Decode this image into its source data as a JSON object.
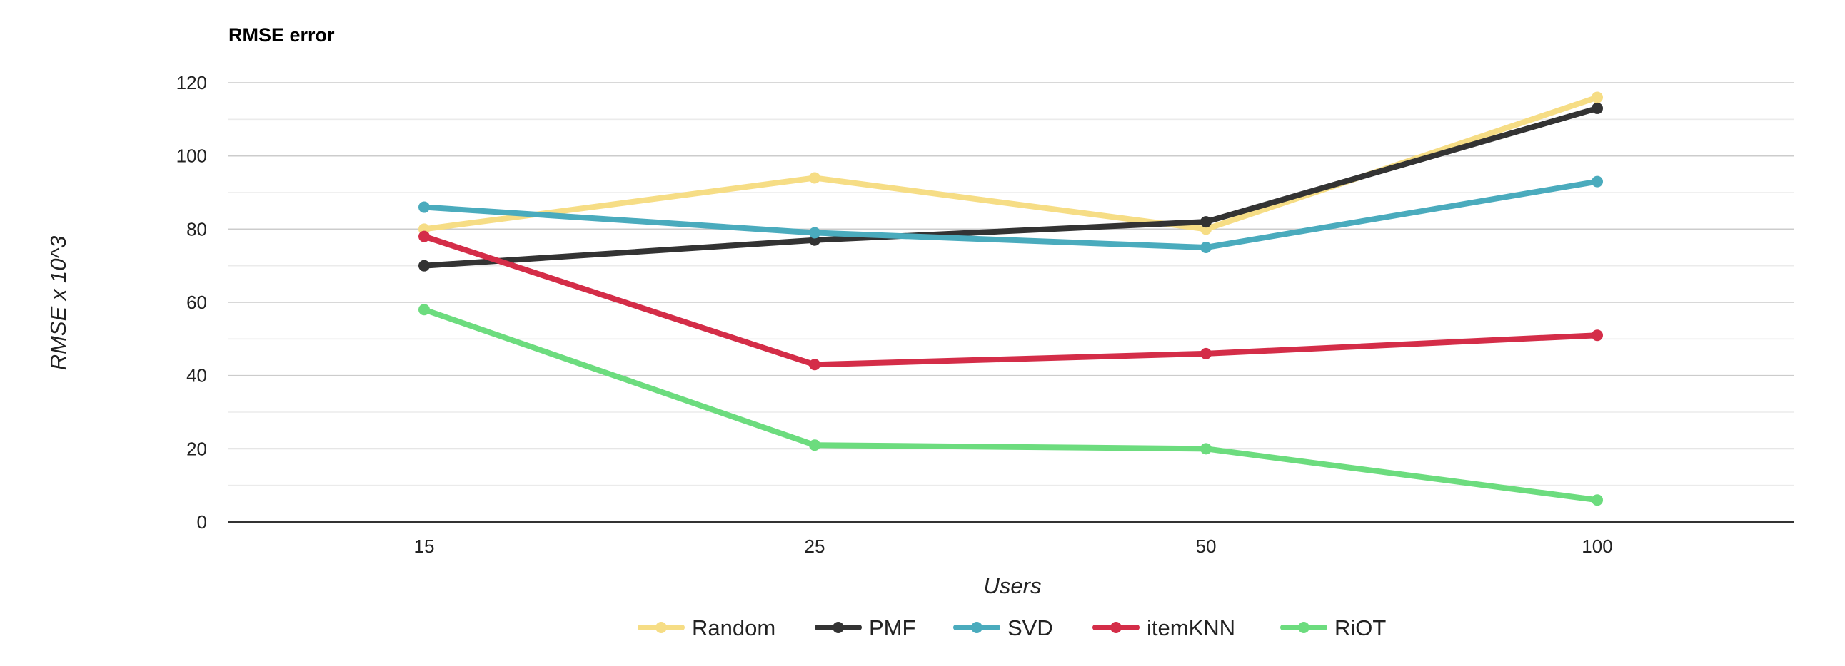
{
  "chart_data": {
    "type": "line",
    "title": "RMSE error",
    "xlabel": "Users",
    "ylabel": "RMSE x 10^3",
    "categories": [
      "15",
      "25",
      "50",
      "100"
    ],
    "ylim": [
      0,
      120
    ],
    "yticks": [
      0,
      20,
      40,
      60,
      80,
      100,
      120
    ],
    "grid": true,
    "legend_position": "bottom",
    "series": [
      {
        "name": "Random",
        "color": "#f6dd85",
        "values": [
          80,
          94,
          80,
          116
        ]
      },
      {
        "name": "PMF",
        "color": "#333333",
        "values": [
          70,
          77,
          82,
          113
        ]
      },
      {
        "name": "SVD",
        "color": "#4aabbd",
        "values": [
          86,
          79,
          75,
          93
        ]
      },
      {
        "name": "itemKNN",
        "color": "#d42d48",
        "values": [
          78,
          43,
          46,
          51
        ]
      },
      {
        "name": "RiOT",
        "color": "#6cdc7e",
        "values": [
          58,
          21,
          20,
          6
        ]
      }
    ]
  }
}
